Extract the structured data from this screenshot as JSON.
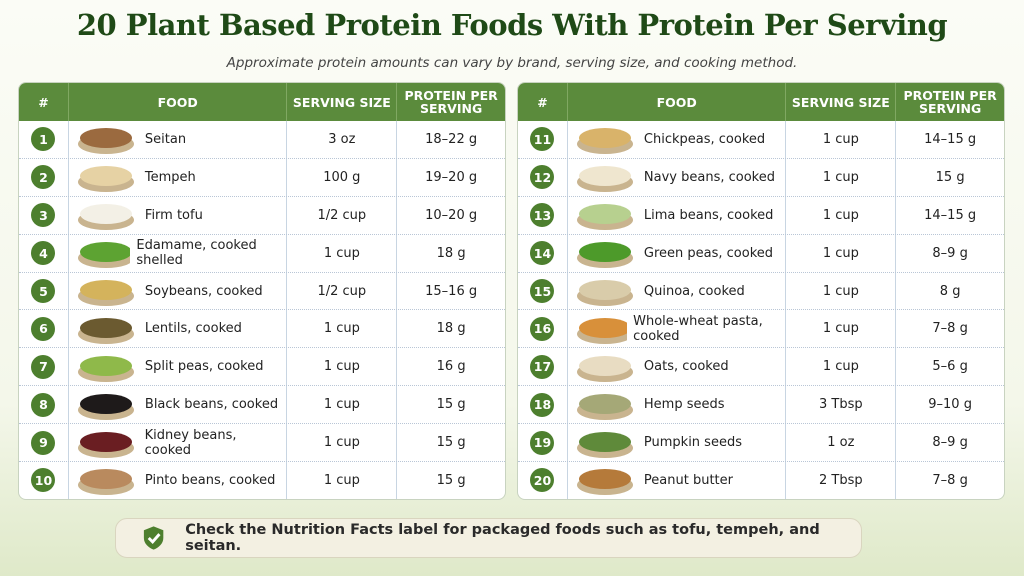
{
  "header": {
    "title": "20 Plant Based Protein Foods With Protein Per Serving",
    "subtitle": "Approximate protein amounts can vary by brand, serving size, and cooking method."
  },
  "tables": [
    {
      "columns": [
        "#",
        "FOOD",
        "SERVING SIZE",
        "PROTEIN PER SERVING"
      ],
      "rows": [
        [
          "1",
          "Seitan",
          "3 oz",
          "18–22 g"
        ],
        [
          "2",
          "Tempeh",
          "100 g",
          "19–20 g"
        ],
        [
          "3",
          "Firm tofu",
          "1/2 cup",
          "10–20 g"
        ],
        [
          "4",
          "Edamame, cooked shelled",
          "1 cup",
          "18 g"
        ],
        [
          "5",
          "Soybeans, cooked",
          "1/2 cup",
          "15–16 g"
        ],
        [
          "6",
          "Lentils, cooked",
          "1 cup",
          "18 g"
        ],
        [
          "7",
          "Split peas, cooked",
          "1 cup",
          "16 g"
        ],
        [
          "8",
          "Black beans, cooked",
          "1 cup",
          "15 g"
        ],
        [
          "9",
          "Kidney beans, cooked",
          "1 cup",
          "15 g"
        ],
        [
          "10",
          "Pinto beans, cooked",
          "1 cup",
          "15 g"
        ]
      ]
    },
    {
      "columns": [
        "#",
        "FOOD",
        "SERVING SIZE",
        "PROTEIN PER SERVING"
      ],
      "rows": [
        [
          "11",
          "Chickpeas, cooked",
          "1 cup",
          "14–15 g"
        ],
        [
          "12",
          "Navy beans, cooked",
          "1 cup",
          "15 g"
        ],
        [
          "13",
          "Lima beans, cooked",
          "1 cup",
          "14–15 g"
        ],
        [
          "14",
          "Green peas, cooked",
          "1 cup",
          "8–9 g"
        ],
        [
          "15",
          "Quinoa, cooked",
          "1 cup",
          "8 g"
        ],
        [
          "16",
          "Whole-wheat pasta, cooked",
          "1 cup",
          "7–8 g"
        ],
        [
          "17",
          "Oats, cooked",
          "1 cup",
          "5–6 g"
        ],
        [
          "18",
          "Hemp seeds",
          "3 Tbsp",
          "9–10 g"
        ],
        [
          "19",
          "Pumpkin seeds",
          "1 oz",
          "8–9 g"
        ],
        [
          "20",
          "Peanut butter",
          "2 Tbsp",
          "7–8 g"
        ]
      ]
    }
  ],
  "footer": {
    "note": "Check the Nutrition Facts label for packaged foods such as tofu, tempeh, and seitan."
  }
}
